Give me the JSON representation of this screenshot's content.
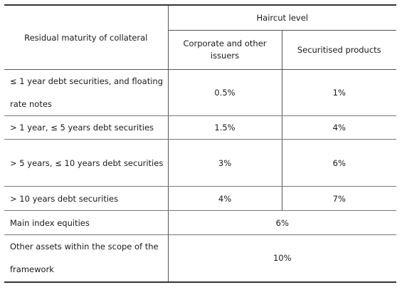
{
  "header": {
    "row_label": "Residual maturity of collateral",
    "group_label": "Haircut level",
    "col_corporate": "Corporate and other issuers",
    "col_securitised": "Securitised products"
  },
  "rows": [
    {
      "label": "≤ 1 year debt securities, and floating rate notes",
      "corporate": "0.5%",
      "securitised": "1%"
    },
    {
      "label": "> 1 year, ≤ 5 years debt securities",
      "corporate": "1.5%",
      "securitised": "4%"
    },
    {
      "label": "> 5 years, ≤ 10 years debt securities",
      "corporate": "3%",
      "securitised": "6%"
    },
    {
      "label": "> 10 years debt securities",
      "corporate": "4%",
      "securitised": "7%"
    },
    {
      "label": "Main index equities",
      "combined": "6%"
    },
    {
      "label": "Other assets within the scope of the framework",
      "combined": "10%"
    }
  ]
}
